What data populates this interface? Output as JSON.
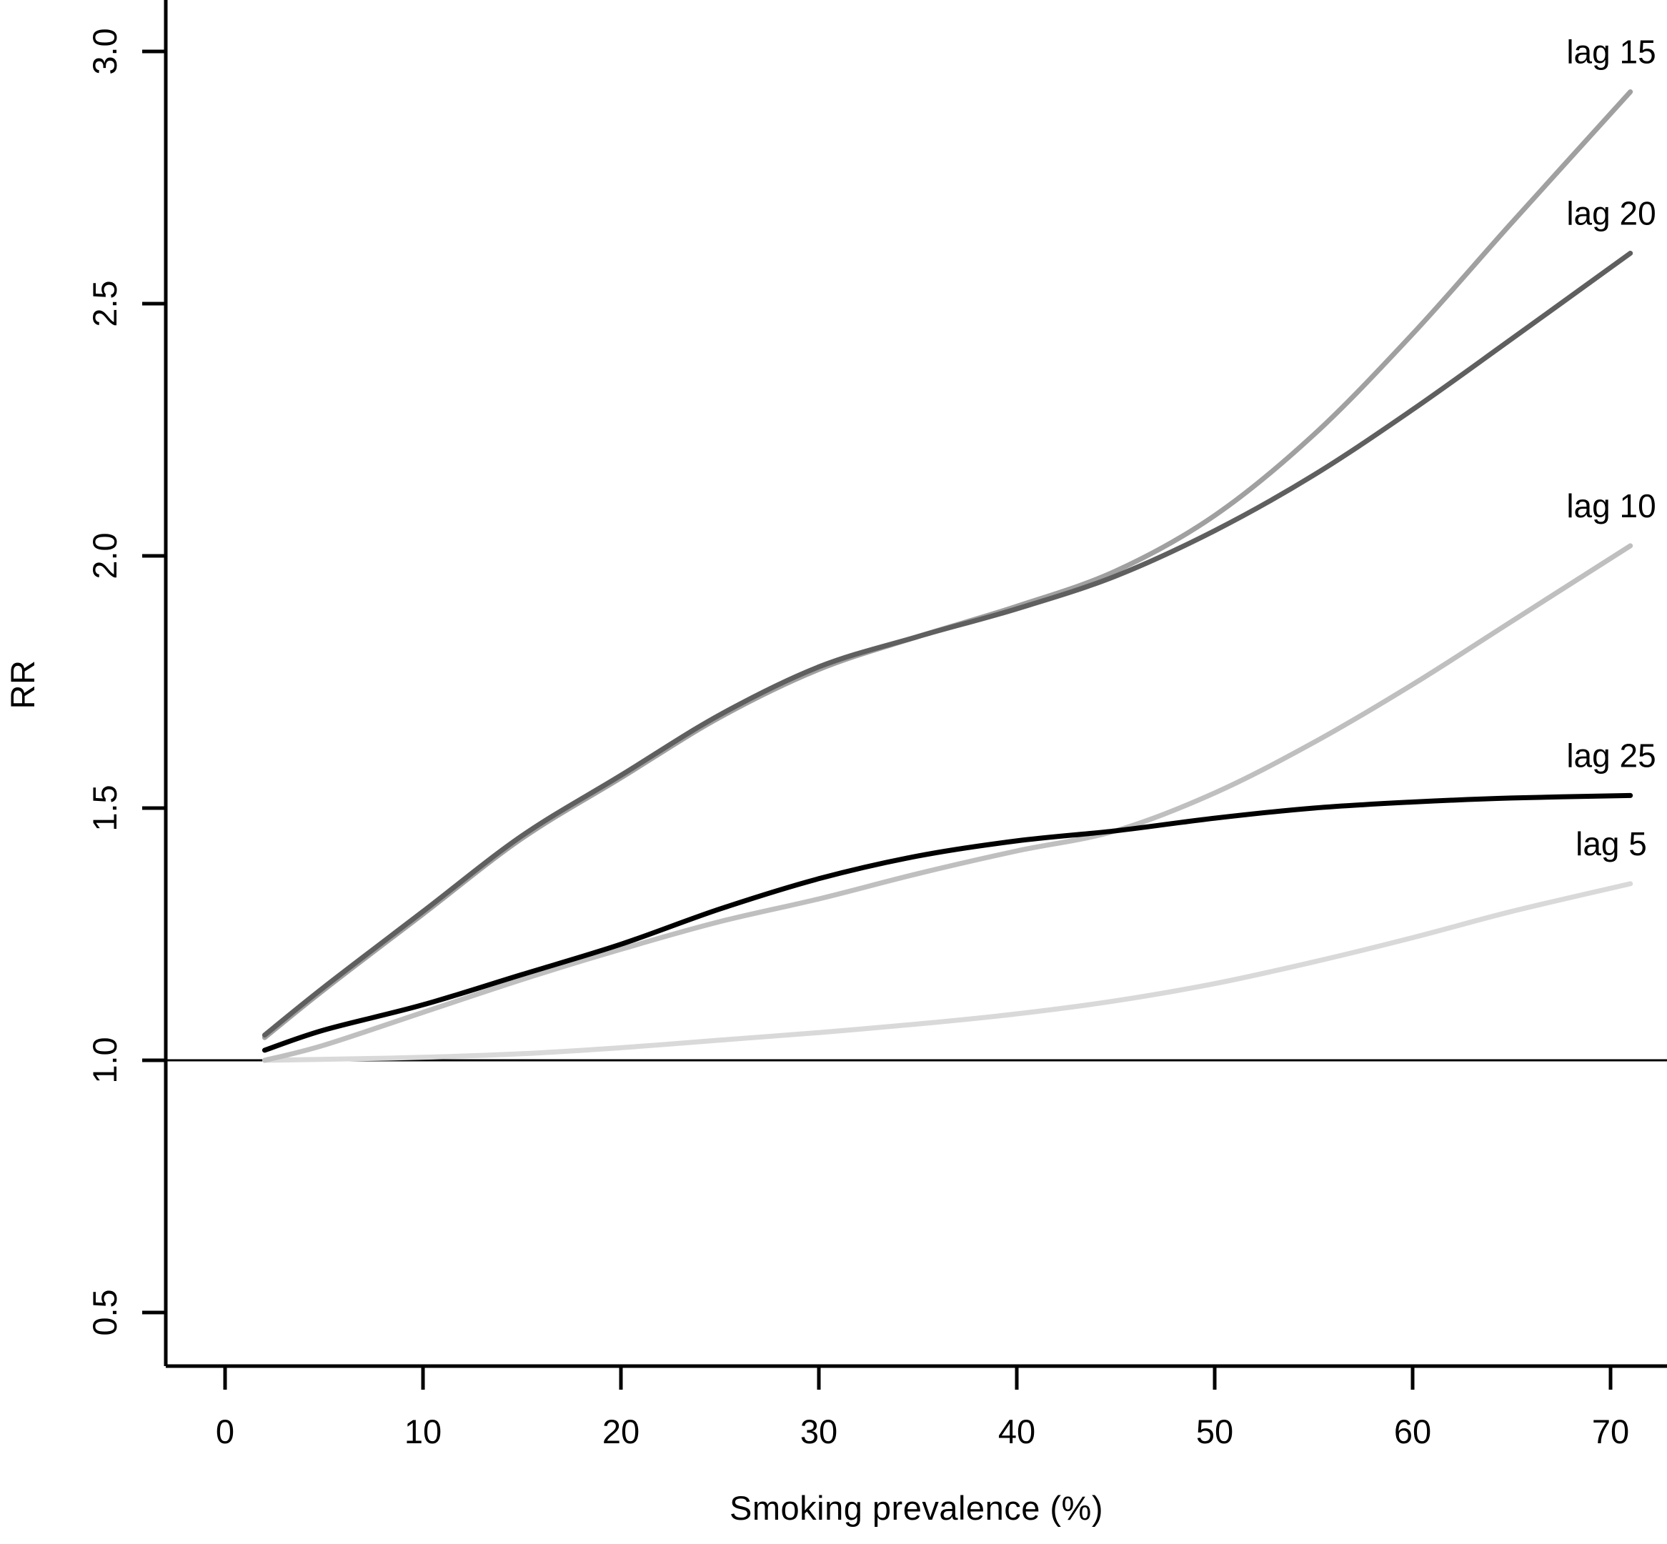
{
  "figure": {
    "background": "#ffffff",
    "axis_color": "#000000",
    "text_color": "#000000"
  },
  "chart_data": {
    "type": "line",
    "title": "",
    "xlabel": "Smoking prevalence (%)",
    "ylabel": "RR",
    "grid": false,
    "legend_position": "curve-end-labels-right",
    "xlim": [
      -3,
      72.9
    ],
    "ylim": [
      0.39,
      3.1
    ],
    "xticks": [
      0,
      10,
      20,
      30,
      40,
      50,
      60,
      70
    ],
    "xtick_labels": [
      "0",
      "10",
      "20",
      "30",
      "40",
      "50",
      "60",
      "70"
    ],
    "yticks": [
      0.5,
      1.0,
      1.5,
      2.0,
      2.5,
      3.0
    ],
    "ytick_labels": [
      "0.5",
      "1.0",
      "1.5",
      "2.0",
      "2.5",
      "3.0"
    ],
    "reference_line_y": 1.0,
    "x": [
      2,
      5,
      10,
      15,
      20,
      25,
      30,
      35,
      40,
      45,
      50,
      55,
      60,
      65,
      71
    ],
    "series": [
      {
        "name": "lag 5",
        "color": "#d9d9d9",
        "values": [
          1.0,
          1.002,
          1.006,
          1.013,
          1.025,
          1.04,
          1.055,
          1.072,
          1.092,
          1.118,
          1.152,
          1.195,
          1.243,
          1.295,
          1.35
        ]
      },
      {
        "name": "lag 10",
        "color": "#bfbfbf",
        "values": [
          1.0,
          1.03,
          1.095,
          1.16,
          1.22,
          1.275,
          1.32,
          1.37,
          1.415,
          1.455,
          1.53,
          1.63,
          1.745,
          1.87,
          2.02
        ]
      },
      {
        "name": "lag 15",
        "color": "#a0a0a0",
        "values": [
          1.045,
          1.14,
          1.29,
          1.44,
          1.56,
          1.68,
          1.775,
          1.84,
          1.9,
          1.97,
          2.08,
          2.24,
          2.44,
          2.66,
          2.92
        ]
      },
      {
        "name": "lag 20",
        "color": "#5f5f5f",
        "values": [
          1.05,
          1.145,
          1.295,
          1.445,
          1.565,
          1.685,
          1.78,
          1.84,
          1.895,
          1.96,
          2.05,
          2.16,
          2.29,
          2.43,
          2.6
        ]
      },
      {
        "name": "lag 25",
        "color": "#000000",
        "values": [
          1.02,
          1.06,
          1.11,
          1.17,
          1.23,
          1.3,
          1.36,
          1.405,
          1.435,
          1.455,
          1.48,
          1.5,
          1.512,
          1.52,
          1.525
        ]
      }
    ]
  }
}
